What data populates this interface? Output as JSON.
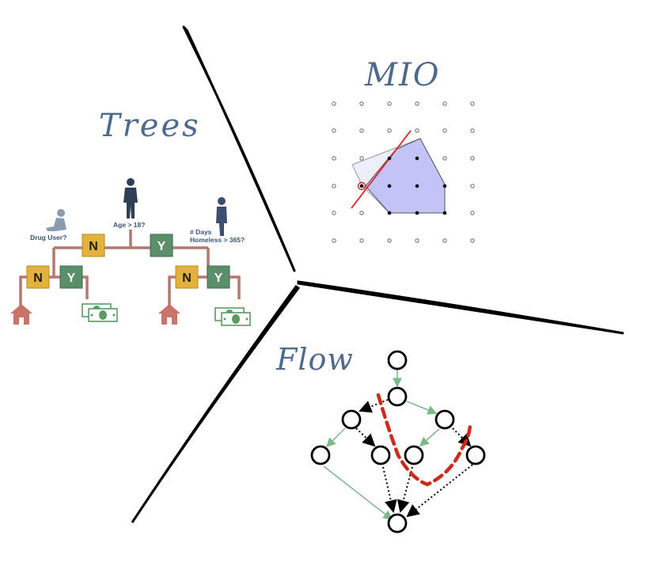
{
  "sections": {
    "trees": {
      "title": "Trees",
      "root_question": "Age > 18?",
      "left_question": "Drug User?",
      "right_question_line1": "# Days",
      "right_question_line2": "Homeless > 365?",
      "no_label": "N",
      "yes_label": "Y"
    },
    "mio": {
      "title": "MIO"
    },
    "flow": {
      "title": "Flow"
    }
  },
  "colors": {
    "no_box": "#e3b23c",
    "yes_box": "#5b8f6b",
    "tree_branch": "#b5776f",
    "house": "#c9736a",
    "money": "#5c9a64",
    "person": "#2e3f55",
    "polygon_fill": "#c3c3f7",
    "polygon_light": "#eceefa",
    "cut_line": "#d9262a",
    "flow_green": "#7cb88a",
    "flow_red": "#cc2a1a",
    "title_color": "#4d6a8c"
  }
}
